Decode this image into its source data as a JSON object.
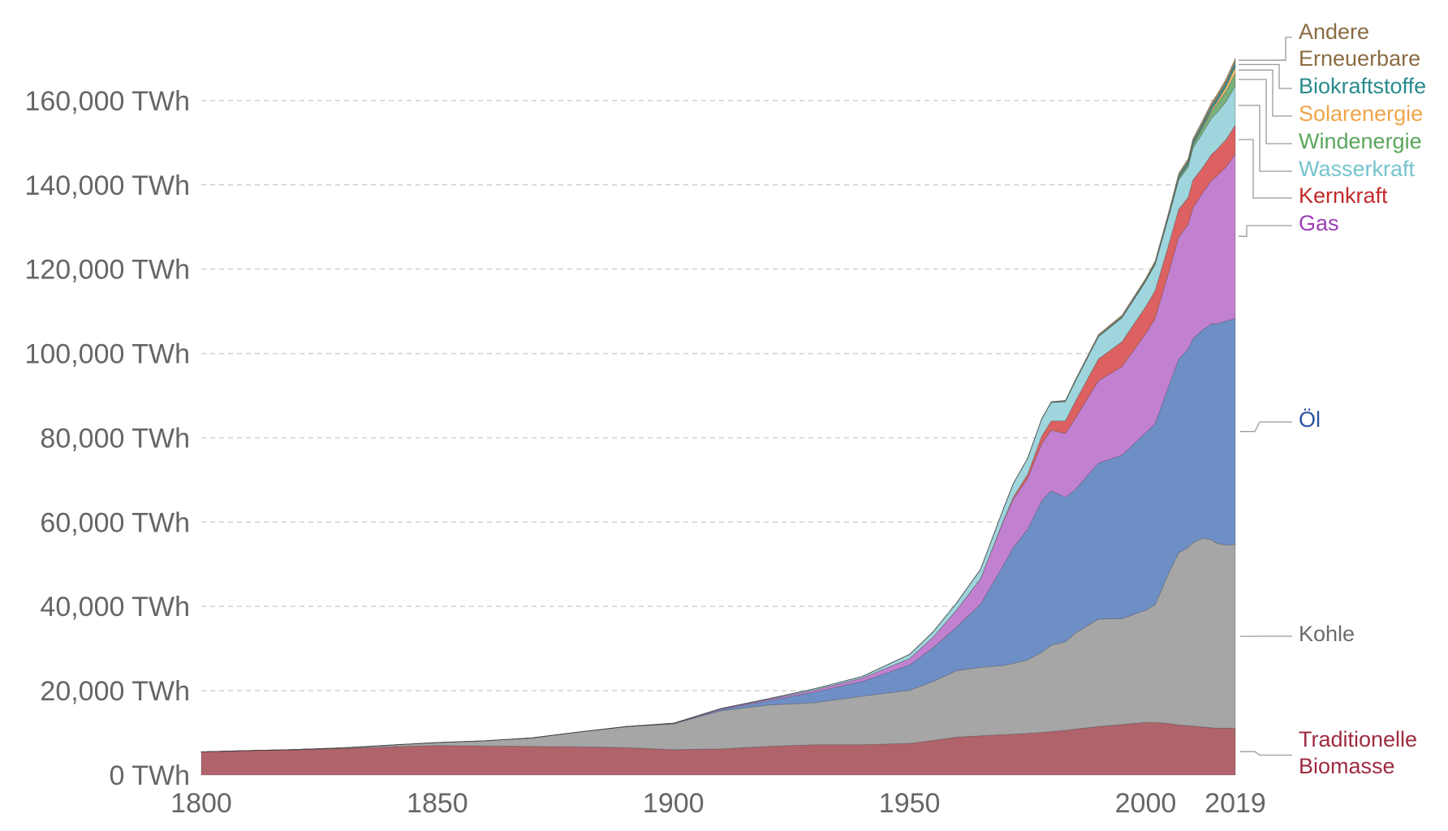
{
  "chart_data": {
    "type": "area",
    "stacked": true,
    "x": [
      1800,
      1810,
      1820,
      1830,
      1840,
      1850,
      1860,
      1870,
      1880,
      1890,
      1900,
      1910,
      1920,
      1930,
      1940,
      1950,
      1955,
      1960,
      1965,
      1970,
      1972,
      1975,
      1978,
      1980,
      1983,
      1985,
      1990,
      1995,
      2000,
      2002,
      2005,
      2007,
      2009,
      2010,
      2012,
      2014,
      2015,
      2017,
      2019
    ],
    "series": [
      {
        "name": "Traditionelle Biomasse",
        "color": "#b0636b",
        "label_color": "#9e2b3f",
        "values": [
          5500,
          5800,
          6000,
          6300,
          6700,
          7000,
          6900,
          6800,
          6700,
          6500,
          6000,
          6200,
          6800,
          7200,
          7200,
          7500,
          8200,
          9000,
          9300,
          9600,
          9700,
          9900,
          10100,
          10300,
          10600,
          10900,
          11500,
          12000,
          12500,
          12500,
          12200,
          11900,
          11700,
          11600,
          11400,
          11200,
          11100,
          11100,
          11100
        ]
      },
      {
        "name": "Kohle",
        "color": "#a6a6a6",
        "label_color": "#6b6b6b",
        "values": [
          0,
          0,
          50,
          150,
          400,
          700,
          1200,
          2000,
          3500,
          5000,
          6100,
          9000,
          9800,
          10000,
          11500,
          12600,
          14000,
          15800,
          16200,
          16400,
          16800,
          17400,
          19000,
          20500,
          21000,
          22700,
          25500,
          25100,
          26600,
          27900,
          36000,
          40800,
          42300,
          43500,
          44800,
          44600,
          43900,
          43400,
          43600
        ]
      },
      {
        "name": "Öl",
        "color": "#6e8fc6",
        "label_color": "#2a52a0",
        "values": [
          0,
          0,
          0,
          0,
          0,
          0,
          0,
          0,
          0,
          0,
          100,
          300,
          1000,
          2500,
          3500,
          6000,
          8000,
          10400,
          15000,
          24000,
          27500,
          31000,
          36000,
          36600,
          34300,
          34000,
          37000,
          38800,
          42100,
          42900,
          44500,
          45900,
          47100,
          48400,
          49300,
          51300,
          52000,
          53200,
          53600
        ]
      },
      {
        "name": "Gas",
        "color": "#c281d0",
        "label_color": "#9d3fb5",
        "values": [
          0,
          0,
          0,
          0,
          0,
          0,
          0,
          0,
          0,
          0,
          60,
          200,
          300,
          500,
          800,
          1500,
          2500,
          4000,
          6000,
          10500,
          11500,
          12000,
          13500,
          14400,
          15100,
          16800,
          19500,
          21000,
          23500,
          25000,
          27000,
          29000,
          29500,
          31000,
          32500,
          34000,
          35000,
          36500,
          39000
        ]
      },
      {
        "name": "Kernkraft",
        "color": "#dc6160",
        "label_color": "#c22b2a",
        "values": [
          0,
          0,
          0,
          0,
          0,
          0,
          0,
          0,
          0,
          0,
          0,
          0,
          0,
          0,
          0,
          0,
          0,
          0,
          30,
          200,
          500,
          1000,
          1800,
          2200,
          3000,
          4000,
          5200,
          5900,
          6400,
          6600,
          6600,
          6600,
          6400,
          6600,
          6000,
          6200,
          6300,
          6500,
          6900
        ]
      },
      {
        "name": "Wasserkraft",
        "color": "#9fd5dc",
        "label_color": "#75c4ce",
        "values": [
          0,
          0,
          0,
          0,
          0,
          0,
          0,
          0,
          0,
          0,
          20,
          60,
          150,
          300,
          400,
          1000,
          1300,
          1700,
          2200,
          2800,
          3200,
          3800,
          4100,
          4400,
          4600,
          4800,
          5300,
          5700,
          6000,
          6200,
          6600,
          7000,
          7200,
          7500,
          8200,
          8600,
          8700,
          9000,
          9300
        ]
      },
      {
        "name": "Windenergie",
        "color": "#78b17a",
        "label_color": "#5aa65b",
        "values": [
          0,
          0,
          0,
          0,
          0,
          0,
          0,
          0,
          0,
          0,
          0,
          0,
          0,
          0,
          0,
          0,
          0,
          0,
          0,
          0,
          0,
          0,
          0,
          0,
          0,
          0,
          10,
          20,
          80,
          120,
          250,
          400,
          650,
          800,
          1200,
          1600,
          1900,
          2500,
          3000
        ]
      },
      {
        "name": "Solarenergie",
        "color": "#f3c26e",
        "label_color": "#f0a548",
        "values": [
          0,
          0,
          0,
          0,
          0,
          0,
          0,
          0,
          0,
          0,
          0,
          0,
          0,
          0,
          0,
          0,
          0,
          0,
          0,
          0,
          0,
          0,
          0,
          0,
          0,
          0,
          0,
          1,
          3,
          5,
          10,
          20,
          50,
          80,
          250,
          450,
          600,
          1000,
          1500
        ]
      },
      {
        "name": "Biokraftstoffe",
        "color": "#3f8f8f",
        "label_color": "#2a8a8c",
        "values": [
          0,
          0,
          0,
          0,
          0,
          0,
          0,
          0,
          0,
          0,
          0,
          0,
          0,
          0,
          0,
          0,
          0,
          0,
          0,
          0,
          0,
          0,
          50,
          100,
          150,
          180,
          200,
          220,
          250,
          300,
          450,
          550,
          700,
          750,
          800,
          900,
          950,
          1000,
          1100
        ]
      },
      {
        "name": "Andere Erneuerbare",
        "color": "#a58a62",
        "label_color": "#8b6c42",
        "values": [
          0,
          0,
          0,
          0,
          0,
          0,
          0,
          0,
          0,
          0,
          0,
          0,
          0,
          0,
          0,
          0,
          0,
          0,
          0,
          0,
          0,
          0,
          30,
          100,
          150,
          200,
          300,
          400,
          450,
          480,
          550,
          600,
          650,
          700,
          750,
          800,
          850,
          900,
          950
        ]
      }
    ],
    "legend_lines": [
      {
        "series": "Andere Erneuerbare",
        "text": "Andere",
        "color": "#8b6c42"
      },
      {
        "series": "Andere Erneuerbare",
        "text": "Erneuerbare",
        "color": "#8b6c42"
      },
      {
        "series": "Biokraftstoffe",
        "text": "Biokraftstoffe",
        "color": "#2a8a8c"
      },
      {
        "series": "Solarenergie",
        "text": "Solarenergie",
        "color": "#f0a548"
      },
      {
        "series": "Windenergie",
        "text": "Windenergie",
        "color": "#5aa65b"
      },
      {
        "series": "Wasserkraft",
        "text": "Wasserkraft",
        "color": "#75c4ce"
      },
      {
        "series": "Kernkraft",
        "text": "Kernkraft",
        "color": "#c22b2a"
      },
      {
        "series": "Gas",
        "text": "Gas",
        "color": "#9d3fb5"
      },
      {
        "series": "Öl",
        "text": "Öl",
        "color": "#2a52a0"
      },
      {
        "series": "Kohle",
        "text": "Kohle",
        "color": "#6b6b6b"
      },
      {
        "series": "Traditionelle Biomasse",
        "text": "Traditionelle",
        "color": "#9e2b3f"
      },
      {
        "series": "Traditionelle Biomasse",
        "text": "Biomasse",
        "color": "#9e2b3f"
      }
    ],
    "y_ticks": [
      0,
      20000,
      40000,
      60000,
      80000,
      100000,
      120000,
      140000,
      160000
    ],
    "y_tick_labels": [
      "0 TWh",
      "20,000 TWh",
      "40,000 TWh",
      "60,000 TWh",
      "80,000 TWh",
      "100,000 TWh",
      "120,000 TWh",
      "140,000 TWh",
      "160,000 TWh"
    ],
    "x_ticks": [
      1800,
      1850,
      1900,
      1950,
      2000,
      2019
    ],
    "x_tick_labels": [
      "1800",
      "1850",
      "1900",
      "1950",
      "2000",
      "2019"
    ],
    "xlim": [
      1800,
      2019
    ],
    "ylim": [
      0,
      175000
    ],
    "grid": true,
    "xlabel": "",
    "ylabel": ""
  }
}
